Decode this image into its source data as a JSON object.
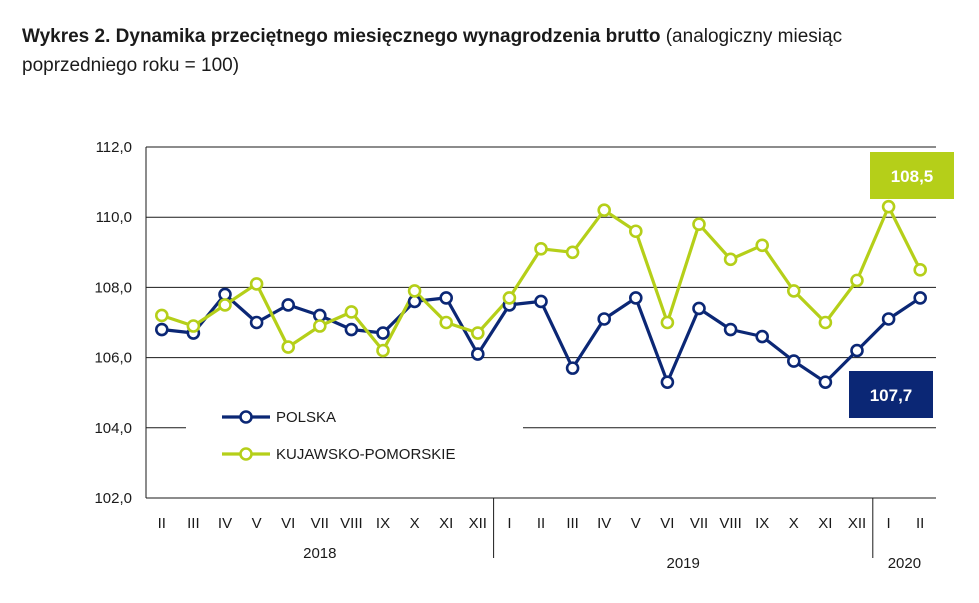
{
  "title": {
    "bold": "Wykres 2. Dynamika przeciętnego miesięcznego wynagrodzenia brutto",
    "normal": " (analogiczny miesiąc poprzedniego roku = 100)"
  },
  "colors": {
    "polska": "#0b2775",
    "kujawsko": "#b5cf19",
    "grid": "#1a1a1a"
  },
  "chart_data": {
    "type": "line",
    "ylim": [
      102,
      112
    ],
    "y_ticks": [
      "112,0",
      "110,0",
      "108,0",
      "106,0",
      "104,0",
      "102,0"
    ],
    "y_tick_values": [
      112,
      110,
      108,
      106,
      104,
      102
    ],
    "categories": [
      "II",
      "III",
      "IV",
      "V",
      "VI",
      "VII",
      "VIII",
      "IX",
      "X",
      "XI",
      "XII",
      "I",
      "II",
      "III",
      "IV",
      "V",
      "VI",
      "VII",
      "VIII",
      "IX",
      "X",
      "XI",
      "XII",
      "I",
      "II"
    ],
    "years": [
      {
        "label": "2018",
        "start": 0,
        "end": 10
      },
      {
        "label": "2019",
        "start": 11,
        "end": 22
      },
      {
        "label": "2020",
        "start": 23,
        "end": 24
      }
    ],
    "series": [
      {
        "name": "POLSKA",
        "color": "#0b2775",
        "values": [
          106.8,
          106.7,
          107.8,
          107.0,
          107.5,
          107.2,
          106.8,
          106.7,
          107.6,
          107.7,
          106.1,
          107.5,
          107.6,
          105.7,
          107.1,
          107.7,
          105.3,
          107.4,
          106.8,
          106.6,
          105.9,
          105.3,
          106.2,
          107.1,
          107.7
        ]
      },
      {
        "name": "KUJAWSKO-POMORSKIE",
        "color": "#b5cf19",
        "values": [
          107.2,
          106.9,
          107.5,
          108.1,
          106.3,
          106.9,
          107.3,
          106.2,
          107.9,
          107.0,
          106.7,
          107.7,
          109.1,
          109.0,
          110.2,
          109.6,
          107.0,
          109.8,
          108.8,
          109.2,
          107.9,
          107.0,
          108.2,
          110.3,
          108.5
        ]
      }
    ],
    "callouts": [
      {
        "text": "108,5",
        "series": "KUJAWSKO-POMORSKIE"
      },
      {
        "text": "107,7",
        "series": "POLSKA"
      }
    ],
    "legend": [
      "POLSKA",
      "KUJAWSKO-POMORSKIE"
    ]
  }
}
